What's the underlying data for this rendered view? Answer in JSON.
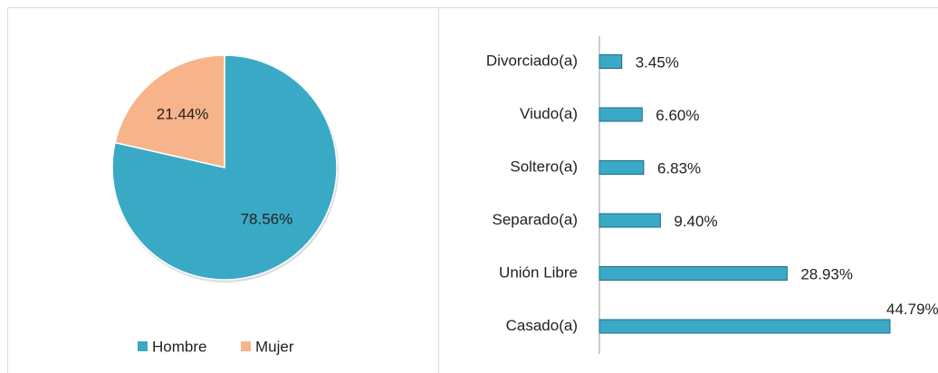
{
  "chart_data": [
    {
      "type": "pie",
      "categories": [
        "Hombre",
        "Mujer"
      ],
      "values": [
        78.56,
        21.44
      ],
      "value_labels": [
        "78.56%",
        "21.44%"
      ],
      "colors": [
        "#3aa9c6",
        "#f7b38a"
      ],
      "legend": "bottom"
    },
    {
      "type": "hbar",
      "categories": [
        "Divorciado(a)",
        "Viudo(a)",
        "Soltero(a)",
        "Separado(a)",
        "Unión Libre",
        "Casado(a)"
      ],
      "values": [
        3.45,
        6.6,
        6.83,
        9.4,
        28.93,
        44.79
      ],
      "value_labels": [
        "3.45%",
        "6.60%",
        "6.83%",
        "9.40%",
        "28.93%",
        "44.79%"
      ],
      "color": "#3aa9c6"
    }
  ]
}
